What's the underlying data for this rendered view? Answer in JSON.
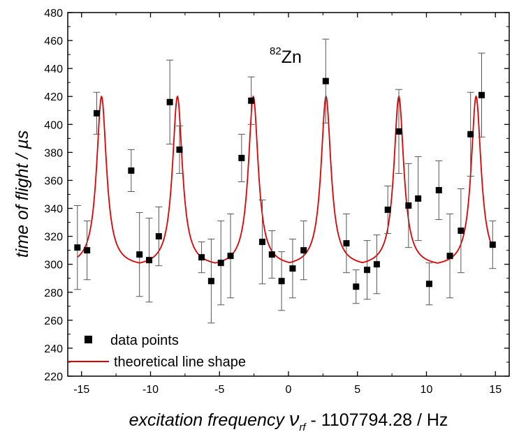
{
  "chart_data": {
    "type": "scatter",
    "xlabel_main": "excitation frequency ",
    "xlabel_symbol": "ν",
    "xlabel_subscript": "rf",
    "xlabel_tail": " - 1107794.28 / Hz",
    "ylabel": "time of flight / µs",
    "xlim": [
      -16,
      16
    ],
    "ylim": [
      220,
      480
    ],
    "xticks": [
      -15,
      -10,
      -5,
      0,
      5,
      10,
      15
    ],
    "xtick_labels": [
      "-15",
      "-10",
      "-5",
      "0",
      "5",
      "10",
      "15"
    ],
    "yticks": [
      220,
      240,
      260,
      280,
      300,
      320,
      340,
      360,
      380,
      400,
      420,
      440,
      460,
      480
    ],
    "ytick_labels": [
      "220",
      "240",
      "260",
      "280",
      "300",
      "320",
      "340",
      "360",
      "380",
      "400",
      "420",
      "440",
      "460",
      "480"
    ],
    "annotation": {
      "superscript": "82",
      "text": "Zn"
    },
    "legend": {
      "position": "bottom-left",
      "entries": [
        "data points",
        "theoretical line shape"
      ]
    },
    "colors": {
      "points": "#000000",
      "errorbars": "#555555",
      "fit": "#e00000"
    },
    "series": [
      {
        "name": "data points",
        "kind": "scatter",
        "points": [
          {
            "x": -15.3,
            "y": 312,
            "err": 30
          },
          {
            "x": -14.6,
            "y": 310,
            "err": 21
          },
          {
            "x": -13.9,
            "y": 408,
            "err": 15
          },
          {
            "x": -11.4,
            "y": 367,
            "err": 15
          },
          {
            "x": -10.8,
            "y": 307,
            "err": 30
          },
          {
            "x": -10.1,
            "y": 303,
            "err": 30
          },
          {
            "x": -9.4,
            "y": 320,
            "err": 21
          },
          {
            "x": -8.6,
            "y": 416,
            "err": 30
          },
          {
            "x": -7.9,
            "y": 382,
            "err": 17
          },
          {
            "x": -6.3,
            "y": 305,
            "err": 11
          },
          {
            "x": -5.6,
            "y": 288,
            "err": 30
          },
          {
            "x": -4.9,
            "y": 301,
            "err": 30
          },
          {
            "x": -4.2,
            "y": 306,
            "err": 30
          },
          {
            "x": -3.4,
            "y": 376,
            "err": 17
          },
          {
            "x": -2.7,
            "y": 417,
            "err": 17
          },
          {
            "x": -1.9,
            "y": 316,
            "err": 30
          },
          {
            "x": -1.2,
            "y": 307,
            "err": 17
          },
          {
            "x": -0.5,
            "y": 288,
            "err": 21
          },
          {
            "x": 0.3,
            "y": 297,
            "err": 21
          },
          {
            "x": 1.1,
            "y": 310,
            "err": 21
          },
          {
            "x": 2.7,
            "y": 431,
            "err": 30
          },
          {
            "x": 4.2,
            "y": 315,
            "err": 21
          },
          {
            "x": 4.9,
            "y": 284,
            "err": 12
          },
          {
            "x": 5.7,
            "y": 296,
            "err": 21
          },
          {
            "x": 6.4,
            "y": 300,
            "err": 21
          },
          {
            "x": 7.2,
            "y": 339,
            "err": 17
          },
          {
            "x": 8.0,
            "y": 395,
            "err": 30
          },
          {
            "x": 8.7,
            "y": 342,
            "err": 30
          },
          {
            "x": 9.4,
            "y": 347,
            "err": 30
          },
          {
            "x": 10.2,
            "y": 286,
            "err": 15
          },
          {
            "x": 10.9,
            "y": 353,
            "err": 21
          },
          {
            "x": 11.7,
            "y": 306,
            "err": 30
          },
          {
            "x": 12.5,
            "y": 324,
            "err": 30
          },
          {
            "x": 13.2,
            "y": 393,
            "err": 30
          },
          {
            "x": 14.0,
            "y": 421,
            "err": 30
          },
          {
            "x": 14.8,
            "y": 314,
            "err": 17
          }
        ]
      },
      {
        "name": "theoretical line shape",
        "kind": "line",
        "peaks": [
          -13.55,
          -8.05,
          -2.55,
          2.72,
          8.0,
          13.6
        ],
        "baseline": 298,
        "peak_height": 420,
        "x_range": [
          -15.3,
          14.8
        ]
      }
    ]
  }
}
